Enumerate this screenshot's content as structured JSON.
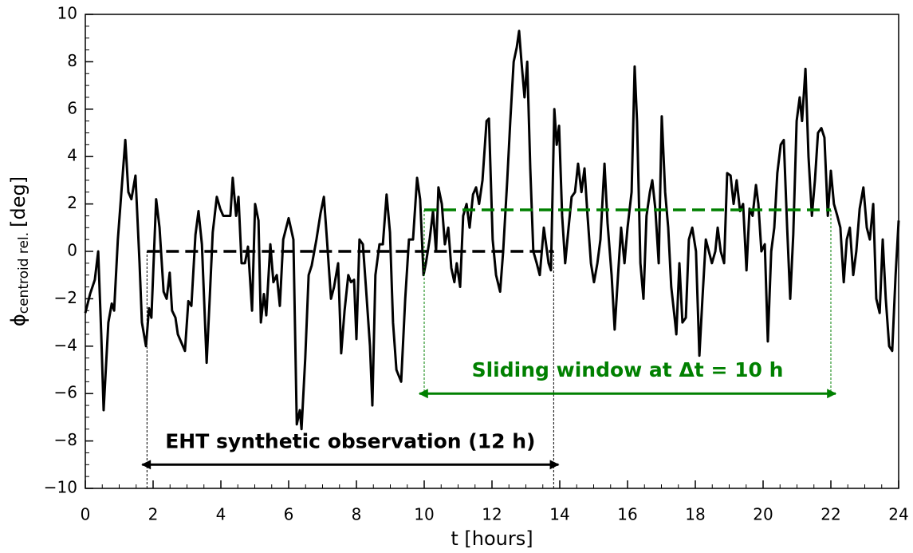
{
  "chart_data": {
    "type": "line",
    "xlabel": "t [hours]",
    "ylabel": "ϕ",
    "ylabel_sub": "centroid rel.",
    "ylabel_unit": "[deg]",
    "xlim": [
      0,
      24
    ],
    "ylim": [
      -10,
      10
    ],
    "xticks": [
      0,
      2,
      4,
      6,
      8,
      10,
      12,
      14,
      16,
      18,
      20,
      22,
      24
    ],
    "yticks": [
      {
        "value": -10,
        "label": "−10"
      },
      {
        "value": -8,
        "label": "−8"
      },
      {
        "value": -6,
        "label": "−6"
      },
      {
        "value": -4,
        "label": "−4"
      },
      {
        "value": -2,
        "label": "−2"
      },
      0,
      2,
      4,
      6,
      8,
      10
    ],
    "xminor": 0.5,
    "yminor": 0.5,
    "series": [
      {
        "color": "#000000",
        "x": [
          0,
          0.14,
          0.28,
          0.38,
          0.47,
          0.54,
          0.68,
          0.78,
          0.85,
          0.96,
          1.08,
          1.18,
          1.27,
          1.36,
          1.48,
          1.6,
          1.67,
          1.79,
          1.88,
          1.95,
          2.09,
          2.19,
          2.31,
          2.4,
          2.49,
          2.56,
          2.66,
          2.73,
          2.82,
          2.94,
          3.04,
          3.13,
          3.25,
          3.34,
          3.44,
          3.58,
          3.67,
          3.76,
          3.88,
          3.98,
          4.07,
          4.19,
          4.28,
          4.35,
          4.45,
          4.52,
          4.61,
          4.71,
          4.8,
          4.92,
          5.01,
          5.11,
          5.18,
          5.27,
          5.34,
          5.46,
          5.55,
          5.65,
          5.74,
          5.84,
          6,
          6.14,
          6.24,
          6.33,
          6.38,
          6.49,
          6.59,
          6.68,
          6.82,
          6.94,
          7.04,
          7.13,
          7.25,
          7.34,
          7.46,
          7.55,
          7.65,
          7.76,
          7.84,
          7.93,
          8,
          8.09,
          8.19,
          8.28,
          8.4,
          8.47,
          8.56,
          8.68,
          8.78,
          8.89,
          8.99,
          9.08,
          9.18,
          9.32,
          9.44,
          9.55,
          9.67,
          9.79,
          9.88,
          9.98,
          10.05,
          10.16,
          10.26,
          10.35,
          10.42,
          10.52,
          10.61,
          10.71,
          10.8,
          10.89,
          10.96,
          11.06,
          11.15,
          11.25,
          11.34,
          11.44,
          11.53,
          11.62,
          11.72,
          11.84,
          11.91,
          12.02,
          12.12,
          12.24,
          12.33,
          12.45,
          12.54,
          12.64,
          12.73,
          12.8,
          12.87,
          12.96,
          13.04,
          13.13,
          13.22,
          13.32,
          13.41,
          13.53,
          13.67,
          13.74,
          13.84,
          13.91,
          13.98,
          14.07,
          14.16,
          14.26,
          14.35,
          14.45,
          14.54,
          14.64,
          14.73,
          14.82,
          14.92,
          15.01,
          15.11,
          15.2,
          15.32,
          15.41,
          15.53,
          15.62,
          15.72,
          15.81,
          15.91,
          16,
          16.12,
          16.21,
          16.28,
          16.38,
          16.47,
          16.56,
          16.66,
          16.73,
          16.82,
          16.92,
          17.01,
          17.11,
          17.2,
          17.29,
          17.39,
          17.44,
          17.53,
          17.62,
          17.72,
          17.81,
          17.91,
          18.02,
          18.12,
          18.21,
          18.31,
          18.4,
          18.49,
          18.59,
          18.66,
          18.75,
          18.85,
          18.94,
          19.04,
          19.13,
          19.22,
          19.32,
          19.41,
          19.51,
          19.6,
          19.69,
          19.79,
          19.86,
          19.95,
          20.05,
          20.14,
          20.24,
          20.33,
          20.42,
          20.52,
          20.61,
          20.71,
          20.8,
          20.89,
          20.99,
          21.08,
          21.15,
          21.25,
          21.34,
          21.44,
          21.53,
          21.62,
          21.72,
          21.81,
          21.91,
          22,
          22.09,
          22.19,
          22.28,
          22.38,
          22.47,
          22.56,
          22.66,
          22.75,
          22.85,
          22.96,
          23.06,
          23.15,
          23.25,
          23.34,
          23.44,
          23.53,
          23.62,
          23.72,
          23.81,
          23.91,
          24
        ],
        "values": [
          -2.6,
          -1.8,
          -1.2,
          0,
          -3.5,
          -6.7,
          -3,
          -2.2,
          -2.5,
          0.5,
          2.8,
          4.7,
          2.5,
          2.2,
          3.2,
          -0.5,
          -3,
          -4,
          -2.4,
          -2.8,
          2.2,
          1,
          -1.7,
          -2,
          -0.9,
          -2.5,
          -2.8,
          -3.5,
          -3.8,
          -4.2,
          -2.1,
          -2.3,
          0.7,
          1.7,
          0.3,
          -4.7,
          -2,
          0.8,
          2.3,
          1.8,
          1.5,
          1.5,
          1.5,
          3.1,
          1.5,
          2.3,
          -0.5,
          -0.5,
          0.2,
          -2.5,
          2,
          1.3,
          -3,
          -1.8,
          -2.7,
          0.3,
          -1.3,
          -1,
          -2.3,
          0.5,
          1.4,
          0.5,
          -7.3,
          -6.7,
          -7.5,
          -4.5,
          -1,
          -0.6,
          0.5,
          1.6,
          2.3,
          0.5,
          -2,
          -1.5,
          -0.5,
          -4.3,
          -2.5,
          -1,
          -1.3,
          -1.2,
          -3.7,
          0.5,
          0.3,
          -1.5,
          -4,
          -6.5,
          -1,
          0.3,
          0.3,
          2.4,
          0.8,
          -3,
          -5,
          -5.5,
          -2,
          0.5,
          0.5,
          3.1,
          2.2,
          -1,
          -0.5,
          0.5,
          1.7,
          0,
          2.7,
          2,
          0.3,
          1,
          -0.7,
          -1.3,
          -0.5,
          -1.5,
          1.5,
          2,
          1,
          2.4,
          2.7,
          2,
          3,
          5.5,
          5.6,
          0.5,
          -1,
          -1.7,
          0,
          3,
          5.5,
          8,
          8.6,
          9.3,
          8,
          6.5,
          8,
          3.5,
          0,
          -0.5,
          -1,
          1,
          -0.5,
          -0.8,
          6,
          4.5,
          5.3,
          1.5,
          -0.5,
          1,
          2.3,
          2.5,
          3.7,
          2.5,
          3.5,
          1.5,
          -0.5,
          -1.3,
          -0.5,
          0.5,
          3.7,
          1.2,
          -1,
          -3.3,
          -1,
          1,
          -0.5,
          1,
          2.5,
          7.8,
          5.5,
          -0.5,
          -2,
          1.5,
          2.5,
          3,
          1.8,
          -0.5,
          5.7,
          2.5,
          1,
          -1.5,
          -2.8,
          -3.5,
          -0.5,
          -3,
          -2.8,
          0.5,
          1,
          0,
          -4.4,
          -2,
          0.5,
          0,
          -0.5,
          0,
          1,
          0,
          -0.5,
          3.3,
          3.2,
          2,
          3,
          1.7,
          2,
          -0.8,
          1.8,
          1.5,
          2.8,
          2,
          0,
          0.3,
          -3.8,
          0,
          1,
          3.3,
          4.5,
          4.7,
          1,
          -2,
          0.7,
          5.5,
          6.5,
          5.5,
          7.7,
          4,
          1.5,
          3,
          5,
          5.2,
          4.8,
          1.5,
          3.4,
          2,
          1.5,
          1,
          -1.3,
          0.5,
          1,
          -1,
          0,
          1.8,
          2.7,
          1,
          0.5,
          2,
          -2,
          -2.6,
          0.5,
          -2,
          -4,
          -4.2,
          -1,
          1.3
        ]
      }
    ],
    "windows": [
      {
        "label": "EHT synthetic observation (12 h)",
        "x": [
          1.82,
          13.82
        ],
        "mean": 0,
        "arrow_y": -9,
        "color": "#000000"
      },
      {
        "label": "Sliding window at Δt = 10 h",
        "x": [
          10,
          22
        ],
        "mean": 1.75,
        "arrow_y": -6,
        "color": "#008000"
      }
    ]
  }
}
